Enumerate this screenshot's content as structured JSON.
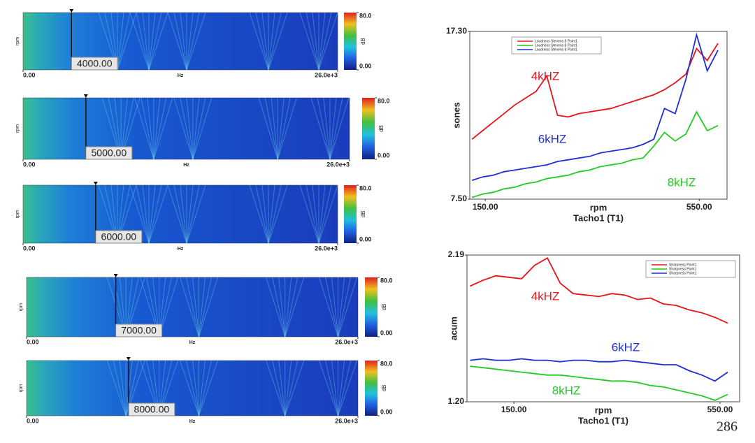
{
  "chart_data": [
    {
      "type": "spectrogram",
      "ylabel": "rpm",
      "xlabel": "Hz",
      "xlim": [
        0,
        26000
      ],
      "xticks": [
        {
          "value": 0,
          "label": "0.00"
        },
        {
          "value": 26000,
          "label": "26.0e+3"
        }
      ],
      "marker": {
        "value": 4000,
        "label": "4000.00"
      },
      "colorbar": {
        "label": "dB",
        "clim": [
          0,
          80
        ],
        "ticks": [
          {
            "value": 0,
            "label": "0.00"
          },
          {
            "value": 80,
            "label": "80.0"
          }
        ]
      }
    },
    {
      "type": "spectrogram",
      "ylabel": "rpm",
      "xlabel": "Hz",
      "xlim": [
        0,
        26000
      ],
      "xticks": [
        {
          "value": 0,
          "label": "0.00"
        },
        {
          "value": 26000,
          "label": "26.0e+3"
        }
      ],
      "marker": {
        "value": 5000,
        "label": "5000.00"
      },
      "colorbar": {
        "label": "dB",
        "clim": [
          0,
          80
        ],
        "ticks": [
          {
            "value": 0,
            "label": "0.00"
          },
          {
            "value": 80,
            "label": "80.0"
          }
        ]
      }
    },
    {
      "type": "spectrogram",
      "ylabel": "rpm",
      "xlabel": "Hz",
      "xlim": [
        0,
        26000
      ],
      "xticks": [
        {
          "value": 0,
          "label": "0.00"
        },
        {
          "value": 26000,
          "label": "26.0e+3"
        }
      ],
      "marker": {
        "value": 6000,
        "label": "6000.00"
      },
      "colorbar": {
        "label": "dB",
        "clim": [
          0,
          80
        ],
        "ticks": [
          {
            "value": 0,
            "label": "0.00"
          },
          {
            "value": 80,
            "label": "80.0"
          }
        ]
      }
    },
    {
      "type": "spectrogram",
      "ylabel": "rpm",
      "xlabel": "Hz",
      "xlim": [
        0,
        26000
      ],
      "xticks": [
        {
          "value": 0,
          "label": "0.00"
        },
        {
          "value": 26000,
          "label": "26.0e+3"
        }
      ],
      "marker": {
        "value": 7000,
        "label": "7000.00"
      },
      "colorbar": {
        "label": "dB",
        "clim": [
          0,
          80
        ],
        "ticks": [
          {
            "value": 0,
            "label": "0.00"
          },
          {
            "value": 80,
            "label": "80.0"
          }
        ]
      }
    },
    {
      "type": "spectrogram",
      "ylabel": "rpm",
      "xlabel": "Hz",
      "xlim": [
        0,
        26000
      ],
      "xticks": [
        {
          "value": 0,
          "label": "0.00"
        },
        {
          "value": 26000,
          "label": "26.0e+3"
        }
      ],
      "marker": {
        "value": 8000,
        "label": "8000.00"
      },
      "colorbar": {
        "label": "dB",
        "clim": [
          0,
          80
        ],
        "ticks": [
          {
            "value": 0,
            "label": "0.00"
          },
          {
            "value": 80,
            "label": "80.0"
          }
        ]
      }
    },
    {
      "type": "line",
      "ylabel": "sones",
      "xlabel": "rpm",
      "xlabel2": "Tacho1 (T1)",
      "xlim": [
        121,
        602
      ],
      "ylim": [
        7.5,
        17.3
      ],
      "xticks": [
        {
          "value": 150,
          "label": "150.00"
        },
        {
          "value": 550,
          "label": "550.00"
        }
      ],
      "yticks": [
        {
          "value": 7.5,
          "label": "7.50"
        },
        {
          "value": 17.3,
          "label": "17.30"
        }
      ],
      "legend": "upper left",
      "x": [
        125,
        145,
        165,
        185,
        205,
        225,
        245,
        265,
        285,
        305,
        325,
        345,
        365,
        385,
        405,
        425,
        445,
        465,
        485,
        505,
        525,
        545,
        565,
        585
      ],
      "series": [
        {
          "name": "Loudness Stevens 8 Point1",
          "label": "4kHZ",
          "color": "#e8141c",
          "values": [
            11.0,
            11.5,
            12.0,
            12.5,
            13.0,
            13.4,
            13.8,
            14.7,
            12.4,
            12.3,
            12.5,
            12.6,
            12.7,
            12.8,
            13.0,
            13.2,
            13.4,
            13.6,
            13.9,
            14.3,
            14.8,
            16.3,
            15.6,
            16.6
          ]
        },
        {
          "name": "Loudness Stevens 8 Point1",
          "label": "8kHZ",
          "color": "#22cc22",
          "values": [
            7.6,
            7.8,
            7.9,
            8.1,
            8.2,
            8.4,
            8.5,
            8.7,
            8.8,
            8.9,
            9.1,
            9.2,
            9.4,
            9.5,
            9.6,
            9.8,
            9.9,
            10.6,
            11.4,
            10.9,
            11.3,
            12.6,
            11.5,
            11.8
          ]
        },
        {
          "name": "Loudness Stevens 8 Point1",
          "label": "6kHZ",
          "color": "#1f2fd8",
          "values": [
            8.6,
            8.8,
            8.9,
            9.1,
            9.2,
            9.3,
            9.4,
            9.5,
            9.7,
            9.8,
            9.9,
            10.0,
            10.2,
            10.3,
            10.4,
            10.5,
            10.7,
            11.0,
            12.8,
            12.5,
            14.5,
            17.1,
            15.0,
            16.2
          ]
        }
      ]
    },
    {
      "type": "line",
      "ylabel": "acum",
      "xlabel": "rpm",
      "xlabel2": "Tacho1 (T1)",
      "xlim": [
        59,
        588
      ],
      "ylim": [
        1.2,
        2.19
      ],
      "xticks": [
        {
          "value": 150,
          "label": "150.00"
        },
        {
          "value": 550,
          "label": "550.00"
        }
      ],
      "yticks": [
        {
          "value": 1.2,
          "label": "1.20"
        },
        2.19
      ],
      "legend": "upper right",
      "x": [
        65,
        90,
        115,
        140,
        165,
        190,
        215,
        240,
        265,
        290,
        315,
        340,
        365,
        390,
        415,
        440,
        465,
        490,
        515,
        540,
        565
      ],
      "series": [
        {
          "name": "Sharpness Point1",
          "label": "4kHZ",
          "color": "#e8141c",
          "values": [
            1.98,
            2.02,
            2.05,
            2.04,
            2.03,
            2.12,
            2.17,
            2.0,
            1.93,
            1.92,
            1.91,
            1.93,
            1.92,
            1.89,
            1.9,
            1.86,
            1.85,
            1.82,
            1.8,
            1.77,
            1.73
          ]
        },
        {
          "name": "Sharpness Point1",
          "label": "8kHZ",
          "color": "#22cc22",
          "values": [
            1.44,
            1.43,
            1.42,
            1.41,
            1.4,
            1.39,
            1.38,
            1.38,
            1.37,
            1.36,
            1.35,
            1.34,
            1.34,
            1.33,
            1.31,
            1.3,
            1.28,
            1.26,
            1.24,
            1.21,
            1.25
          ]
        },
        {
          "name": "Sharpness Point1",
          "label": "6kHZ",
          "color": "#1f2fd8",
          "values": [
            1.48,
            1.49,
            1.48,
            1.48,
            1.49,
            1.48,
            1.48,
            1.47,
            1.48,
            1.48,
            1.47,
            1.47,
            1.48,
            1.47,
            1.46,
            1.45,
            1.45,
            1.41,
            1.38,
            1.34,
            1.4
          ]
        }
      ]
    }
  ],
  "page_number": "286"
}
